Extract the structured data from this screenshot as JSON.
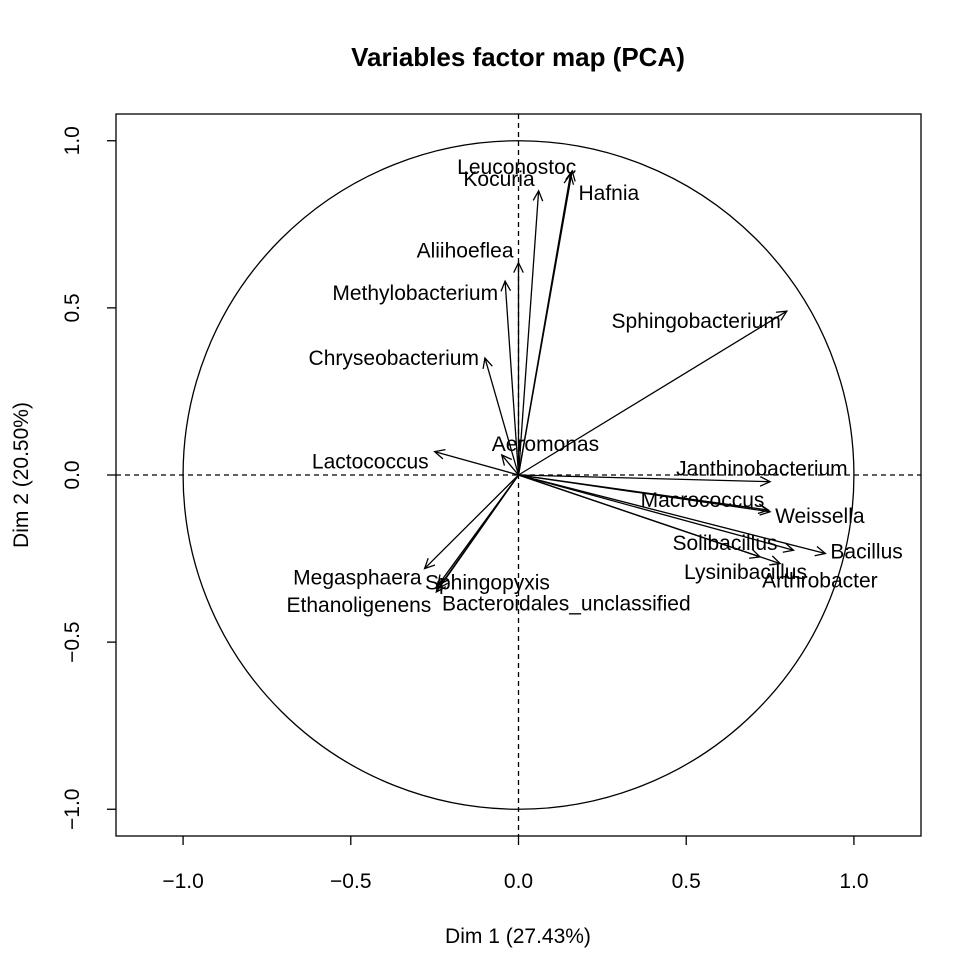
{
  "chart_data": {
    "type": "scatter",
    "title": "Variables factor map (PCA)",
    "xlabel": "Dim 1 (27.43%)",
    "ylabel": "Dim 2 (20.50%)",
    "xlim": [
      -1.2,
      1.2
    ],
    "ylim": [
      -1.08,
      1.08
    ],
    "xticks": [
      -1.0,
      -0.5,
      0.0,
      0.5,
      1.0
    ],
    "yticks": [
      -1.0,
      -0.5,
      0.0,
      0.5,
      1.0
    ],
    "xtick_labels": [
      "−1.0",
      "−0.5",
      "0.0",
      "0.5",
      "1.0"
    ],
    "ytick_labels": [
      "−1.0",
      "−0.5",
      "0.0",
      "0.5",
      "1.0"
    ],
    "unit_circle": true,
    "grid": false,
    "variables": [
      {
        "name": "Leuconostoc",
        "x": 0.16,
        "y": 0.91
      },
      {
        "name": "Hafnia",
        "x": 0.155,
        "y": 0.9
      },
      {
        "name": "Kocuria",
        "x": 0.06,
        "y": 0.85
      },
      {
        "name": "Aliihoeflea",
        "x": 0.0,
        "y": 0.635
      },
      {
        "name": "Methylobacterium",
        "x": -0.04,
        "y": 0.58
      },
      {
        "name": "Sphingobacterium",
        "x": 0.8,
        "y": 0.49
      },
      {
        "name": "Chryseobacterium",
        "x": -0.1,
        "y": 0.35
      },
      {
        "name": "Aeromonas",
        "x": -0.05,
        "y": 0.06
      },
      {
        "name": "Lactococcus",
        "x": -0.25,
        "y": 0.07
      },
      {
        "name": "Janthinobacterium",
        "x": 0.75,
        "y": -0.02
      },
      {
        "name": "Macrococcus",
        "x": 0.745,
        "y": -0.105
      },
      {
        "name": "Weissella",
        "x": 0.75,
        "y": -0.11
      },
      {
        "name": "Solibacillus",
        "x": 0.82,
        "y": -0.225
      },
      {
        "name": "Bacillus",
        "x": 0.915,
        "y": -0.235
      },
      {
        "name": "Lysinibacillus",
        "x": 0.72,
        "y": -0.245
      },
      {
        "name": "Arthrobacter",
        "x": 0.78,
        "y": -0.265
      },
      {
        "name": "Sphingopyxis",
        "x": -0.24,
        "y": -0.33
      },
      {
        "name": "Megasphaera",
        "x": -0.28,
        "y": -0.28
      },
      {
        "name": "Ethanoligenens",
        "x": -0.245,
        "y": -0.35
      },
      {
        "name": "Bacteroidales_unclassified",
        "x": -0.24,
        "y": -0.34
      }
    ]
  }
}
